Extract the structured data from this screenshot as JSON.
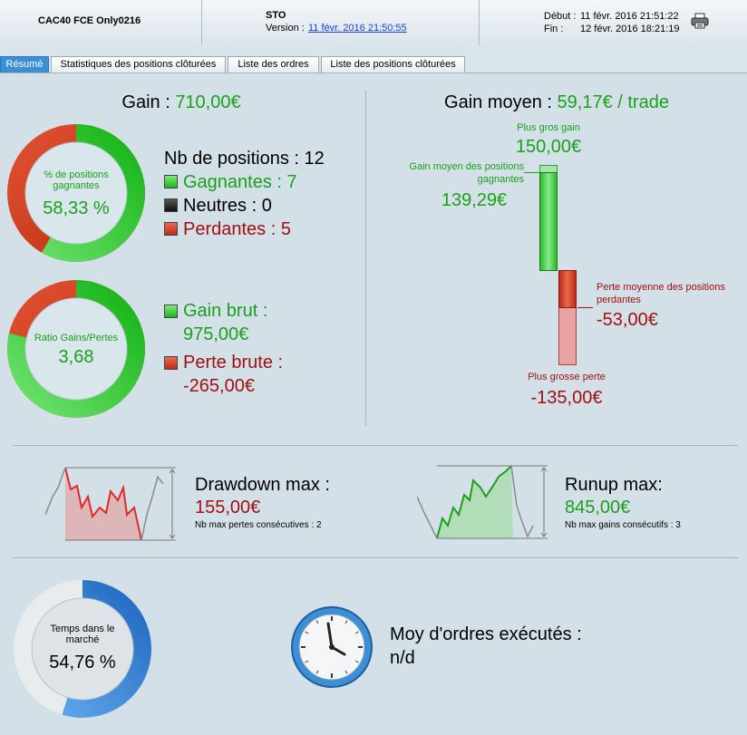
{
  "header": {
    "instrument": "CAC40 FCE Only0216",
    "strategy": "STO",
    "version_label": "Version :",
    "version_link": "11 févr. 2016 21:50:55",
    "start_label": "Début :",
    "start_value": "11 févr. 2016 21:51:22",
    "end_label": "Fin :",
    "end_value": "12 févr. 2016 18:21:19"
  },
  "tabs": [
    "Résumé",
    "Statistiques des positions clôturées",
    "Liste des ordres",
    "Liste des positions clôturées"
  ],
  "summary": {
    "gain_label": "Gain :",
    "gain_value": "710,00€",
    "winrate_label": "% de positions gagnantes",
    "winrate_value": "58,33 %",
    "winrate_fraction": 0.5833,
    "positions_label": "Nb de positions : 12",
    "winning_label": "Gagnantes : 7",
    "neutral_label": "Neutres : 0",
    "losing_label": "Perdantes : 5",
    "ratio_label": "Ratio Gains/Pertes",
    "ratio_value": "3,68",
    "ratio_fraction": 0.786,
    "gross_gain_label": "Gain brut :",
    "gross_gain_value": "975,00€",
    "gross_loss_label": "Perte brute :",
    "gross_loss_value": "-265,00€"
  },
  "avg": {
    "title_label": "Gain moyen :",
    "title_value": "59,17€ / trade",
    "biggest_gain_label": "Plus gros gain",
    "biggest_gain_value": "150,00€",
    "avg_win_label": "Gain moyen des positions gagnantes",
    "avg_win_value": "139,29€",
    "avg_loss_label": "Perte moyenne des positions perdantes",
    "avg_loss_value": "-53,00€",
    "biggest_loss_label": "Plus grosse perte",
    "biggest_loss_value": "-135,00€"
  },
  "drawdown": {
    "label": "Drawdown max :",
    "value": "155,00€",
    "sub": "Nb max pertes consécutives : 2"
  },
  "runup": {
    "label": "Runup max:",
    "value": "845,00€",
    "sub": "Nb max gains consécutifs : 3"
  },
  "market": {
    "time_label": "Temps dans le marché",
    "time_value": "54,76 %",
    "time_fraction": 0.5476,
    "orders_label": "Moy d'ordres exécutés :",
    "orders_value": "n/d"
  },
  "colors": {
    "green": "#1aa01a",
    "red": "#a11010",
    "blue": "#2e7fd1"
  }
}
